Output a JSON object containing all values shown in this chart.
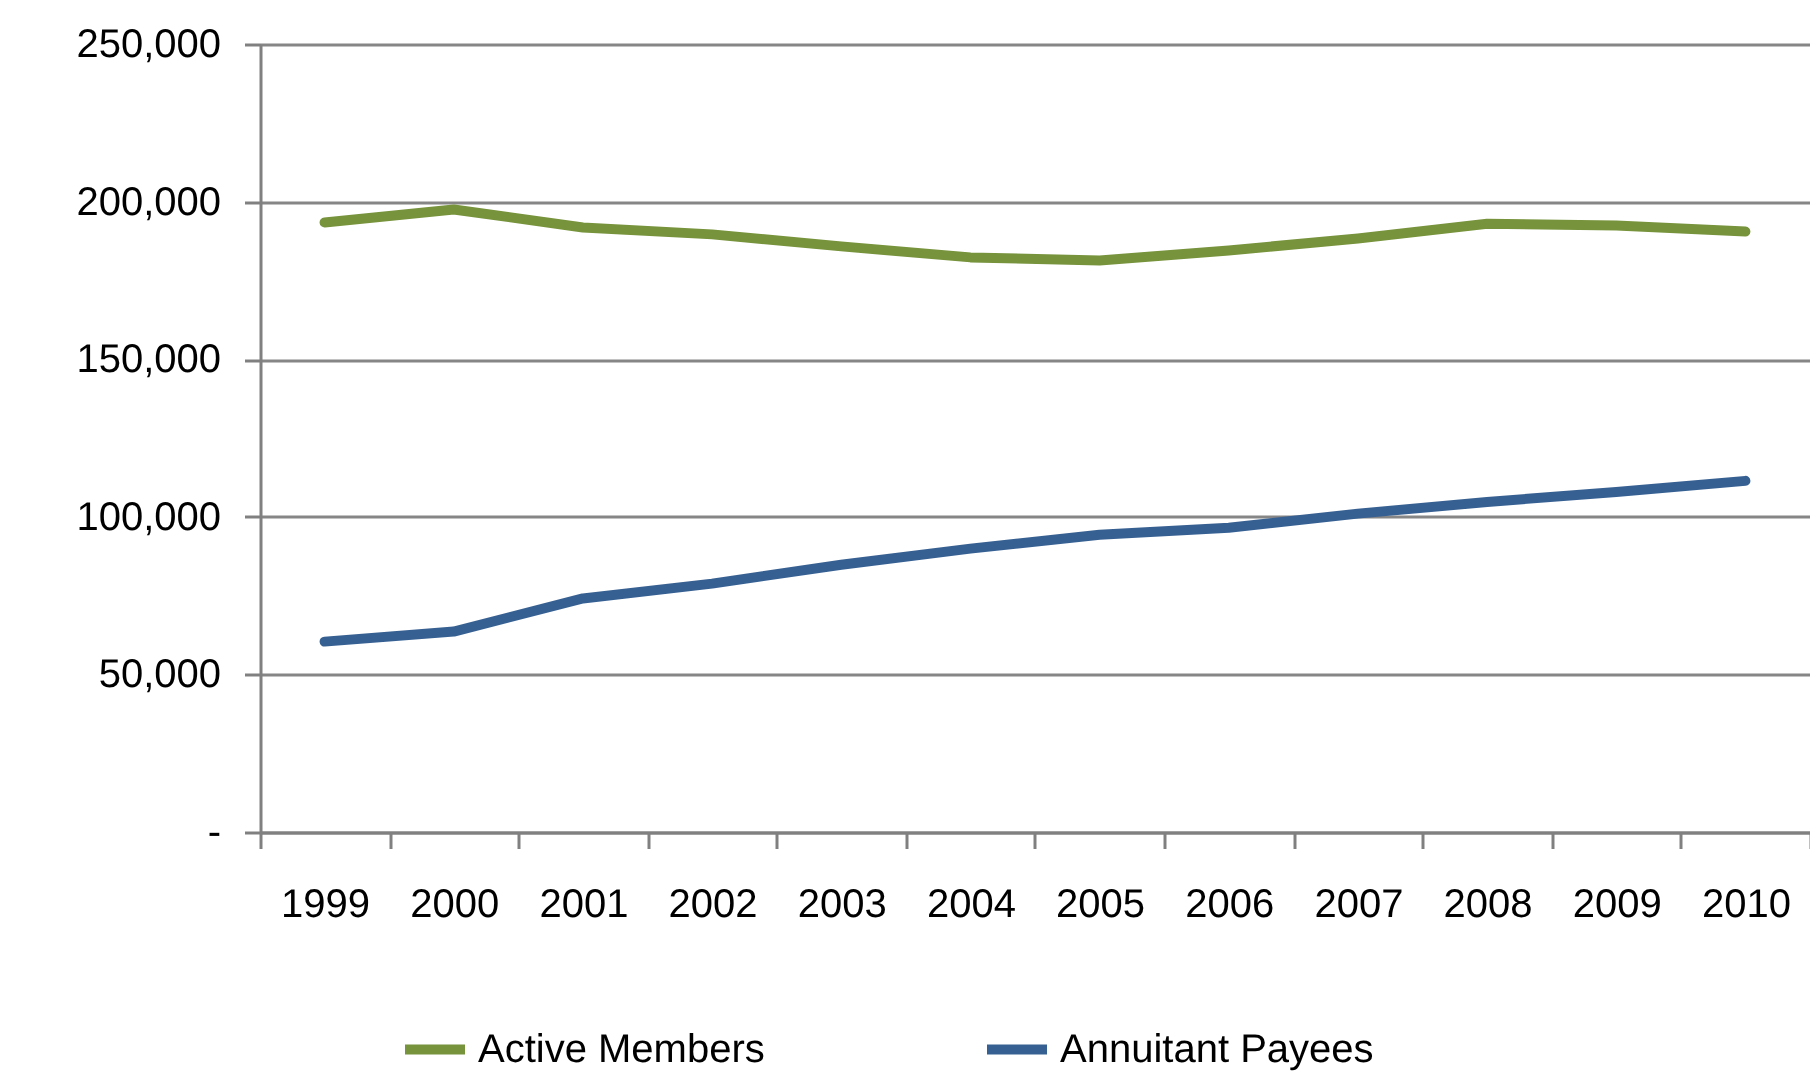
{
  "chart_data": {
    "type": "line",
    "categories": [
      "1999",
      "2000",
      "2001",
      "2002",
      "2003",
      "2004",
      "2005",
      "2006",
      "2007",
      "2008",
      "2009",
      "2010"
    ],
    "series": [
      {
        "name": "Active Members",
        "color": "#77933c",
        "values": [
          193400,
          197500,
          191800,
          189600,
          185800,
          182300,
          181300,
          184500,
          188300,
          193000,
          192400,
          190500
        ]
      },
      {
        "name": "Annuitant Payees",
        "color": "#376092",
        "values": [
          60400,
          63600,
          74100,
          78800,
          84800,
          89900,
          94300,
          96500,
          101000,
          104700,
          107900,
          111400
        ]
      }
    ],
    "ylim": [
      0,
      250000
    ],
    "yticks": [
      {
        "value": 0,
        "label": "-"
      },
      {
        "value": 50000,
        "label": "50,000"
      },
      {
        "value": 100000,
        "label": "100,000"
      },
      {
        "value": 150000,
        "label": "150,000"
      },
      {
        "value": 200000,
        "label": "200,000"
      },
      {
        "value": 250000,
        "label": "250,000"
      }
    ],
    "grid": "y",
    "legend": "bottom"
  }
}
